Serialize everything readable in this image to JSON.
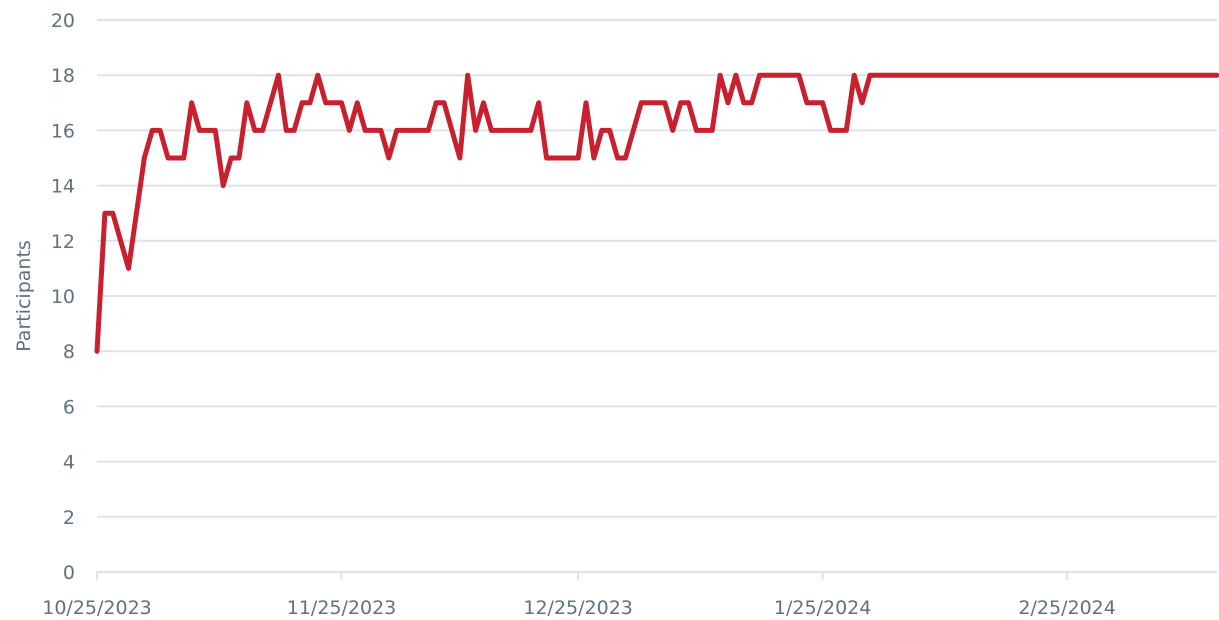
{
  "chart_data": {
    "type": "line",
    "y_label": "Participants",
    "x": [
      "2023-10-25",
      "2023-10-26",
      "2023-10-27",
      "2023-10-28",
      "2023-10-29",
      "2023-10-30",
      "2023-10-31",
      "2023-11-01",
      "2023-11-02",
      "2023-11-03",
      "2023-11-04",
      "2023-11-05",
      "2023-11-06",
      "2023-11-07",
      "2023-11-08",
      "2023-11-09",
      "2023-11-10",
      "2023-11-11",
      "2023-11-12",
      "2023-11-13",
      "2023-11-14",
      "2023-11-15",
      "2023-11-16",
      "2023-11-17",
      "2023-11-18",
      "2023-11-19",
      "2023-11-20",
      "2023-11-21",
      "2023-11-22",
      "2023-11-23",
      "2023-11-24",
      "2023-11-25",
      "2023-11-26",
      "2023-11-27",
      "2023-11-28",
      "2023-11-29",
      "2023-11-30",
      "2023-12-01",
      "2023-12-02",
      "2023-12-03",
      "2023-12-04",
      "2023-12-05",
      "2023-12-06",
      "2023-12-07",
      "2023-12-08",
      "2023-12-09",
      "2023-12-10",
      "2023-12-11",
      "2023-12-12",
      "2023-12-13",
      "2023-12-14",
      "2023-12-15",
      "2023-12-16",
      "2023-12-17",
      "2023-12-18",
      "2023-12-19",
      "2023-12-20",
      "2023-12-21",
      "2023-12-22",
      "2023-12-23",
      "2023-12-24",
      "2023-12-25",
      "2023-12-26",
      "2023-12-27",
      "2023-12-28",
      "2023-12-29",
      "2023-12-30",
      "2023-12-31",
      "2024-01-01",
      "2024-01-02",
      "2024-01-03",
      "2024-01-04",
      "2024-01-05",
      "2024-01-06",
      "2024-01-07",
      "2024-01-08",
      "2024-01-09",
      "2024-01-10",
      "2024-01-11",
      "2024-01-12",
      "2024-01-13",
      "2024-01-14",
      "2024-01-15",
      "2024-01-16",
      "2024-01-17",
      "2024-01-18",
      "2024-01-19",
      "2024-01-20",
      "2024-01-21",
      "2024-01-22",
      "2024-01-23",
      "2024-01-24",
      "2024-01-25",
      "2024-01-26",
      "2024-01-27",
      "2024-01-28",
      "2024-01-29",
      "2024-01-30",
      "2024-01-31",
      "2024-02-01",
      "2024-02-02",
      "2024-02-03",
      "2024-02-04",
      "2024-02-05",
      "2024-02-06",
      "2024-02-07",
      "2024-02-08",
      "2024-02-09",
      "2024-02-10",
      "2024-02-11",
      "2024-02-12",
      "2024-02-13",
      "2024-02-14",
      "2024-02-15",
      "2024-02-16",
      "2024-02-17",
      "2024-02-18",
      "2024-02-19",
      "2024-02-20",
      "2024-02-21",
      "2024-02-22",
      "2024-02-23",
      "2024-02-24",
      "2024-02-25",
      "2024-02-26",
      "2024-02-27",
      "2024-02-28",
      "2024-02-29",
      "2024-03-01",
      "2024-03-02",
      "2024-03-03",
      "2024-03-04",
      "2024-03-05",
      "2024-03-06",
      "2024-03-07",
      "2024-03-08",
      "2024-03-09",
      "2024-03-10",
      "2024-03-11",
      "2024-03-12",
      "2024-03-13",
      "2024-03-14",
      "2024-03-15"
    ],
    "series": [
      {
        "color": "#c8202f",
        "values": [
          8,
          13,
          13,
          12,
          11,
          13,
          15,
          16,
          16,
          15,
          15,
          15,
          17,
          16,
          16,
          16,
          14,
          15,
          15,
          17,
          16,
          16,
          17,
          18,
          16,
          16,
          17,
          17,
          18,
          17,
          17,
          17,
          16,
          17,
          16,
          16,
          16,
          15,
          16,
          16,
          16,
          16,
          16,
          17,
          17,
          16,
          15,
          18,
          16,
          17,
          16,
          16,
          16,
          16,
          16,
          16,
          17,
          15,
          15,
          15,
          15,
          15,
          17,
          15,
          16,
          16,
          15,
          15,
          16,
          17,
          17,
          17,
          17,
          16,
          17,
          17,
          16,
          16,
          16,
          18,
          17,
          18,
          17,
          17,
          18,
          18,
          18,
          18,
          18,
          18,
          17,
          17,
          17,
          16,
          16,
          16,
          18,
          17,
          18,
          18,
          18,
          18,
          18,
          18,
          18,
          18,
          18,
          18,
          18,
          18,
          18,
          18,
          18,
          18,
          18,
          18,
          18,
          18,
          18,
          18,
          18,
          18,
          18,
          18,
          18,
          18,
          18,
          18,
          18,
          18,
          18,
          18,
          18,
          18,
          18,
          18,
          18,
          18,
          18,
          18,
          18,
          18,
          18
        ]
      }
    ],
    "xlim": [
      "2023-10-25",
      "2024-03-15"
    ],
    "xticks": [
      {
        "value": "2023-10-25",
        "label": "10/25/2023"
      },
      {
        "value": "2023-11-25",
        "label": "11/25/2023"
      },
      {
        "value": "2023-12-25",
        "label": "12/25/2023"
      },
      {
        "value": "2024-01-25",
        "label": "1/25/2024"
      },
      {
        "value": "2024-02-25",
        "label": "2/25/2024"
      }
    ],
    "ylim": [
      0,
      20
    ],
    "yticks": [
      0,
      2,
      4,
      6,
      8,
      10,
      12,
      14,
      16,
      18,
      20
    ],
    "grid": true
  }
}
